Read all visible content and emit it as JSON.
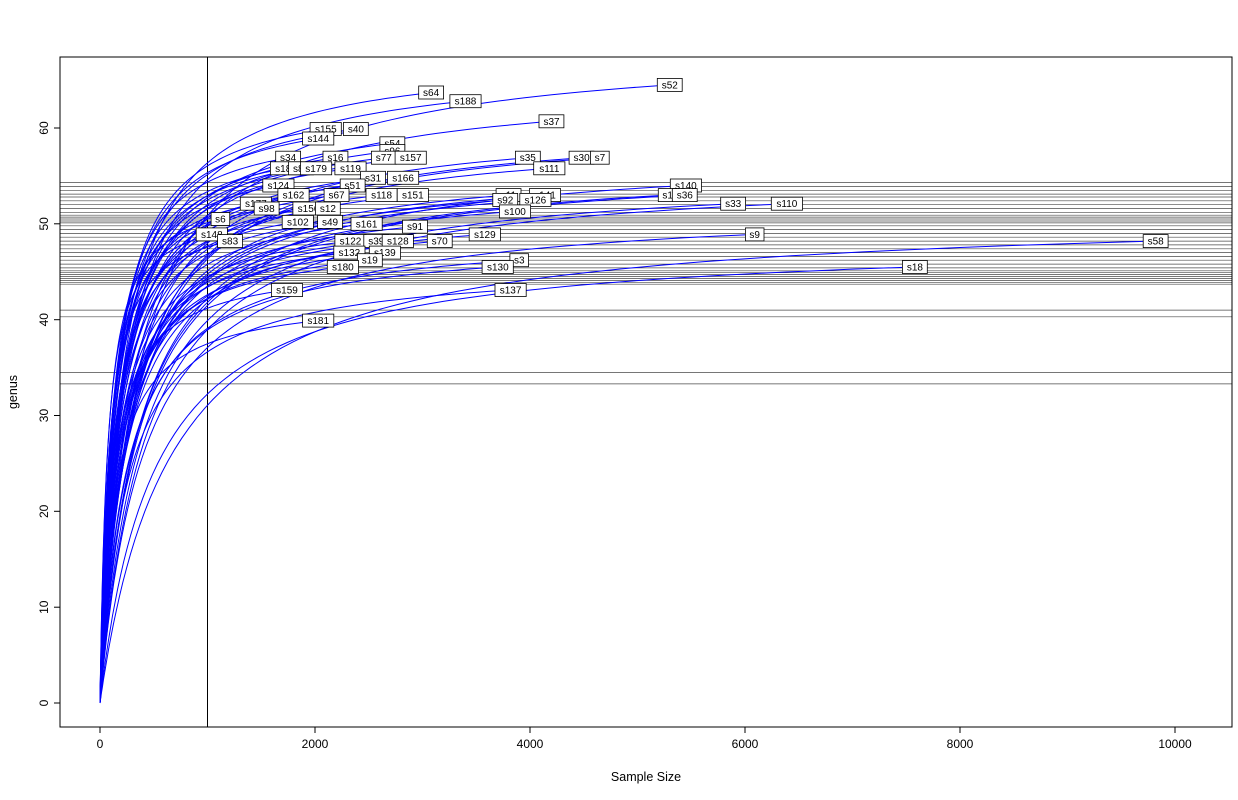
{
  "figure": {
    "background": "#ffffff"
  },
  "chart_data": {
    "type": "line",
    "subtype": "rarefaction-curves",
    "title": "",
    "xlabel": "Sample Size",
    "ylabel": "genus",
    "x_ticks": [
      0,
      2000,
      4000,
      6000,
      8000,
      10000
    ],
    "y_ticks": [
      0,
      10,
      20,
      30,
      40,
      50,
      60
    ],
    "xlim": [
      -370,
      10530
    ],
    "ylim": [
      -2.5,
      67.5
    ],
    "grid": false,
    "legend": "none",
    "colors": {
      "curve": "#0000ff",
      "reference_line": "#2a2a2a",
      "label_box_fill": "#ffffff",
      "label_box_border": "#000000",
      "axis": "#000000"
    },
    "vertical_line_x": 1000,
    "horizontal_lines_y": [
      54.3,
      53.9,
      53.5,
      53.1,
      52.8,
      52.4,
      52.0,
      51.6,
      51.2,
      50.9,
      50.7,
      50.5,
      50.3,
      50.1,
      49.8,
      49.4,
      49.0,
      48.6,
      48.2,
      47.8,
      47.4,
      47.0,
      46.6,
      46.2,
      45.8,
      45.4,
      45.1,
      44.9,
      44.7,
      44.5,
      44.3,
      44.1,
      43.9,
      43.7,
      41.0,
      40.3,
      34.5,
      33.3
    ],
    "curves": [
      {
        "label": "s52",
        "end_x": 5300,
        "end_y": 64.5
      },
      {
        "label": "s64",
        "end_x": 3080,
        "end_y": 63.7
      },
      {
        "label": "s188",
        "end_x": 3400,
        "end_y": 62.8
      },
      {
        "label": "s37",
        "end_x": 4200,
        "end_y": 60.7
      },
      {
        "label": "s155",
        "end_x": 2100,
        "end_y": 59.9
      },
      {
        "label": "s40",
        "end_x": 2380,
        "end_y": 59.9
      },
      {
        "label": "s144",
        "end_x": 2030,
        "end_y": 58.9
      },
      {
        "label": "s54",
        "end_x": 2720,
        "end_y": 58.4
      },
      {
        "label": "s96",
        "end_x": 2720,
        "end_y": 57.6
      },
      {
        "label": "s34",
        "end_x": 1750,
        "end_y": 56.9
      },
      {
        "label": "s16",
        "end_x": 2190,
        "end_y": 56.9
      },
      {
        "label": "s77",
        "end_x": 2640,
        "end_y": 56.9
      },
      {
        "label": "s157",
        "end_x": 2890,
        "end_y": 56.9
      },
      {
        "label": "s35",
        "end_x": 3980,
        "end_y": 56.9
      },
      {
        "label": "s30",
        "end_x": 4480,
        "end_y": 56.9
      },
      {
        "label": "s7",
        "end_x": 4650,
        "end_y": 56.9
      },
      {
        "label": "s185",
        "end_x": 1730,
        "end_y": 55.8
      },
      {
        "label": "s85",
        "end_x": 1870,
        "end_y": 55.8
      },
      {
        "label": "s179",
        "end_x": 2010,
        "end_y": 55.8
      },
      {
        "label": "s119",
        "end_x": 2330,
        "end_y": 55.8
      },
      {
        "label": "s111",
        "end_x": 4180,
        "end_y": 55.8
      },
      {
        "label": "s31",
        "end_x": 2540,
        "end_y": 54.8
      },
      {
        "label": "s166",
        "end_x": 2820,
        "end_y": 54.8
      },
      {
        "label": "s124",
        "end_x": 1660,
        "end_y": 54.0
      },
      {
        "label": "s51",
        "end_x": 2350,
        "end_y": 54.0
      },
      {
        "label": "s140",
        "end_x": 5450,
        "end_y": 54.0
      },
      {
        "label": "s162",
        "end_x": 1800,
        "end_y": 53.0
      },
      {
        "label": "s67",
        "end_x": 2200,
        "end_y": 53.0
      },
      {
        "label": "s118",
        "end_x": 2620,
        "end_y": 53.0
      },
      {
        "label": "s151",
        "end_x": 2910,
        "end_y": 53.0
      },
      {
        "label": "s11",
        "end_x": 3800,
        "end_y": 53.0
      },
      {
        "label": "s141",
        "end_x": 4140,
        "end_y": 53.0
      },
      {
        "label": "s1",
        "end_x": 5280,
        "end_y": 53.0
      },
      {
        "label": "s36",
        "end_x": 5440,
        "end_y": 53.0
      },
      {
        "label": "s92",
        "end_x": 3770,
        "end_y": 52.5
      },
      {
        "label": "s126",
        "end_x": 4050,
        "end_y": 52.5
      },
      {
        "label": "s177",
        "end_x": 1450,
        "end_y": 52.1
      },
      {
        "label": "s33",
        "end_x": 5890,
        "end_y": 52.1
      },
      {
        "label": "s110",
        "end_x": 6390,
        "end_y": 52.1
      },
      {
        "label": "s98",
        "end_x": 1550,
        "end_y": 51.6
      },
      {
        "label": "s156",
        "end_x": 1940,
        "end_y": 51.6
      },
      {
        "label": "s12",
        "end_x": 2120,
        "end_y": 51.6
      },
      {
        "label": "s100",
        "end_x": 3860,
        "end_y": 51.3
      },
      {
        "label": "s6",
        "end_x": 1120,
        "end_y": 50.5
      },
      {
        "label": "s102",
        "end_x": 1840,
        "end_y": 50.2
      },
      {
        "label": "s49",
        "end_x": 2140,
        "end_y": 50.2
      },
      {
        "label": "s161",
        "end_x": 2480,
        "end_y": 50.0
      },
      {
        "label": "s91",
        "end_x": 2930,
        "end_y": 49.7
      },
      {
        "label": "s148",
        "end_x": 1040,
        "end_y": 48.9
      },
      {
        "label": "s129",
        "end_x": 3580,
        "end_y": 48.9
      },
      {
        "label": "s9",
        "end_x": 6090,
        "end_y": 48.9
      },
      {
        "label": "s83",
        "end_x": 1210,
        "end_y": 48.2
      },
      {
        "label": "s122",
        "end_x": 2330,
        "end_y": 48.2
      },
      {
        "label": "s39",
        "end_x": 2570,
        "end_y": 48.2
      },
      {
        "label": "s128",
        "end_x": 2770,
        "end_y": 48.2
      },
      {
        "label": "s70",
        "end_x": 3160,
        "end_y": 48.2
      },
      {
        "label": "s58",
        "end_x": 9820,
        "end_y": 48.2
      },
      {
        "label": "s132",
        "end_x": 2320,
        "end_y": 47.0
      },
      {
        "label": "s139",
        "end_x": 2650,
        "end_y": 47.0
      },
      {
        "label": "s19",
        "end_x": 2510,
        "end_y": 46.2
      },
      {
        "label": "s3",
        "end_x": 3900,
        "end_y": 46.2
      },
      {
        "label": "s180",
        "end_x": 2260,
        "end_y": 45.5
      },
      {
        "label": "s130",
        "end_x": 3700,
        "end_y": 45.5
      },
      {
        "label": "s18",
        "end_x": 7580,
        "end_y": 45.5
      },
      {
        "label": "s159",
        "end_x": 1740,
        "end_y": 43.1
      },
      {
        "label": "s137",
        "end_x": 3820,
        "end_y": 43.1
      },
      {
        "label": "s181",
        "end_x": 2030,
        "end_y": 39.9
      }
    ]
  }
}
